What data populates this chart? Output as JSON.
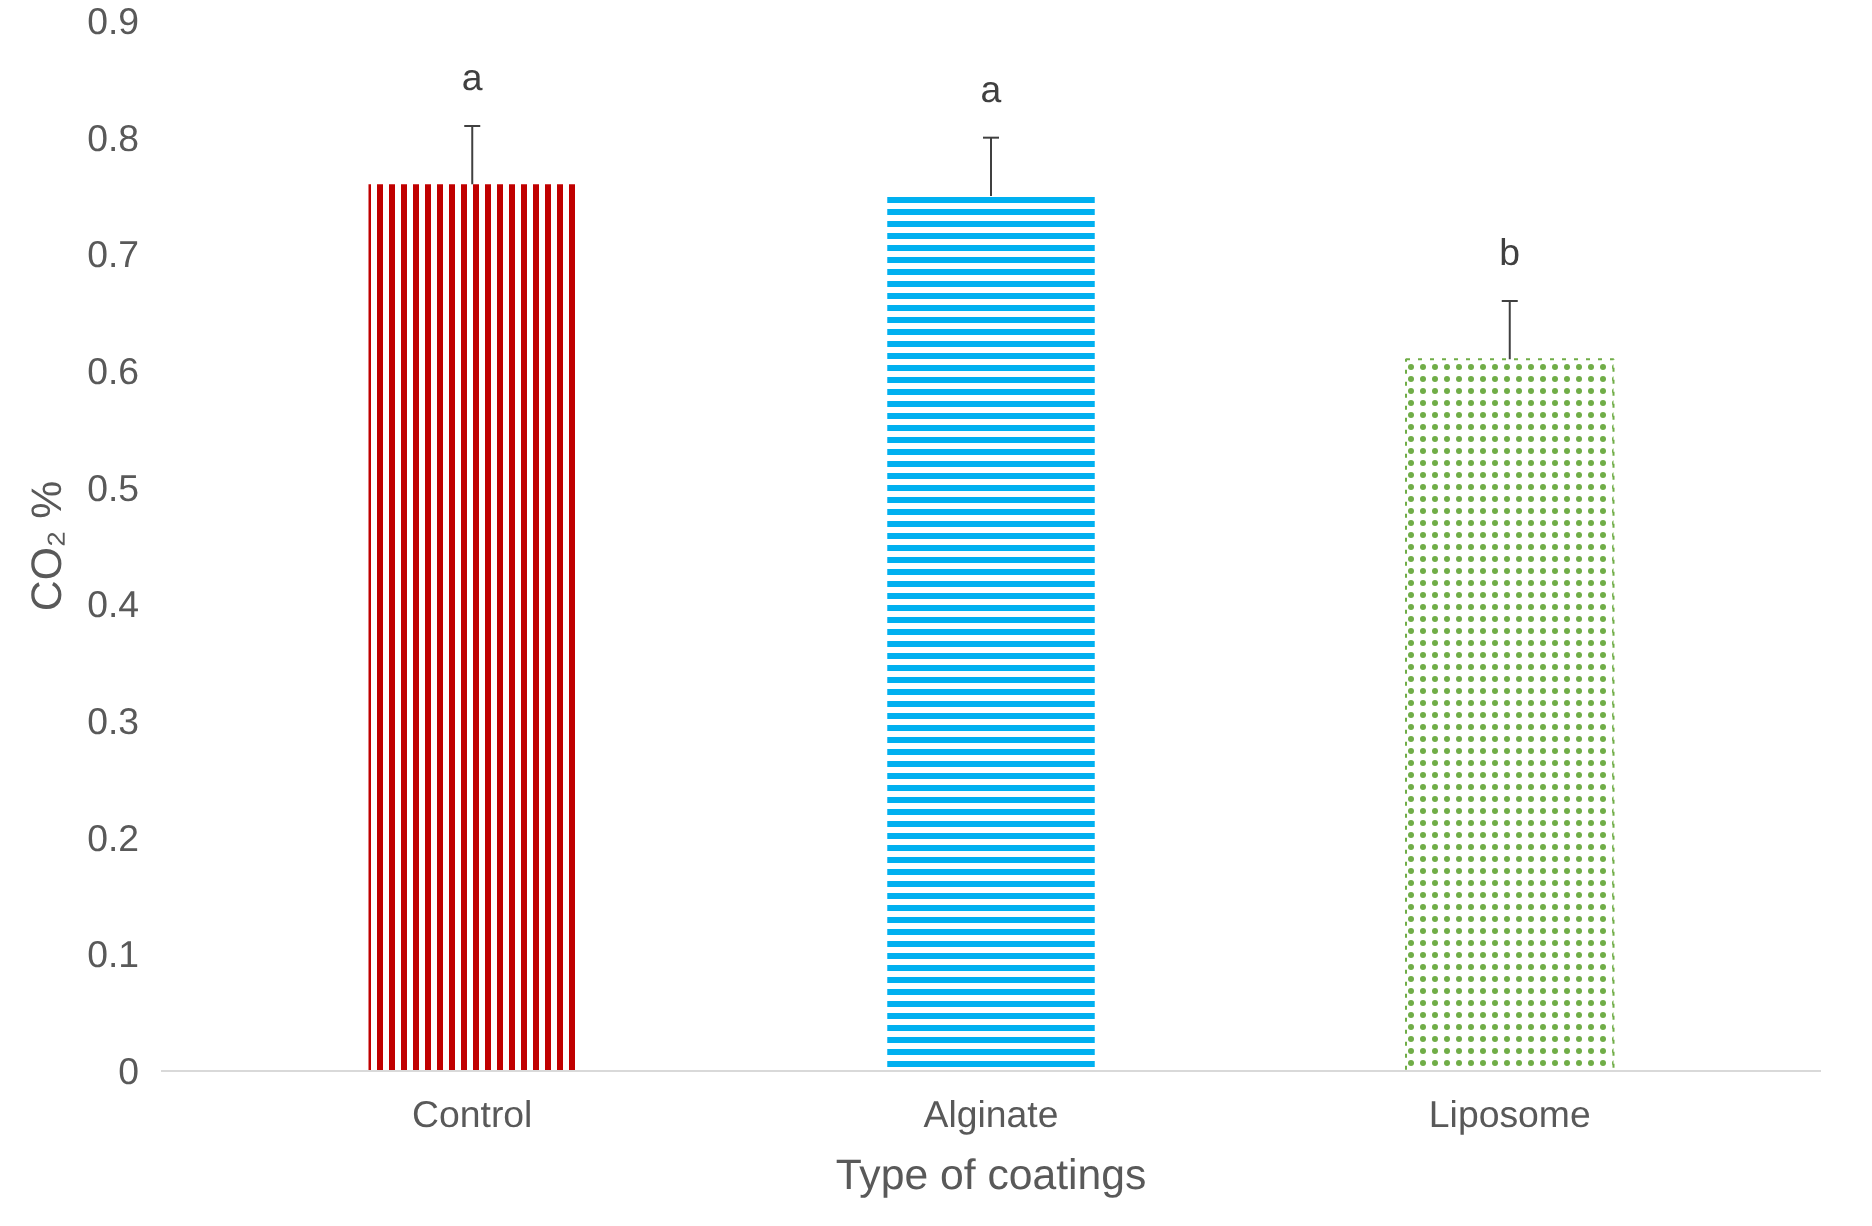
{
  "chart_data": {
    "type": "bar",
    "xlabel": "Type of coatings",
    "ylabel": "CO₂ %",
    "categories": [
      "Control",
      "Alginate",
      "Liposome"
    ],
    "values": [
      0.76,
      0.75,
      0.61
    ],
    "errors": [
      0.05,
      0.05,
      0.05
    ],
    "colors": [
      "#c00000",
      "#00b0f0",
      "#70ad47"
    ],
    "ylim": [
      0,
      0.9
    ],
    "yticks": [
      0,
      0.1,
      0.2,
      0.3,
      0.4,
      0.5,
      0.6,
      0.7,
      0.8,
      0.9
    ],
    "grid": false,
    "annotations": [
      "a",
      "a",
      "b"
    ]
  }
}
